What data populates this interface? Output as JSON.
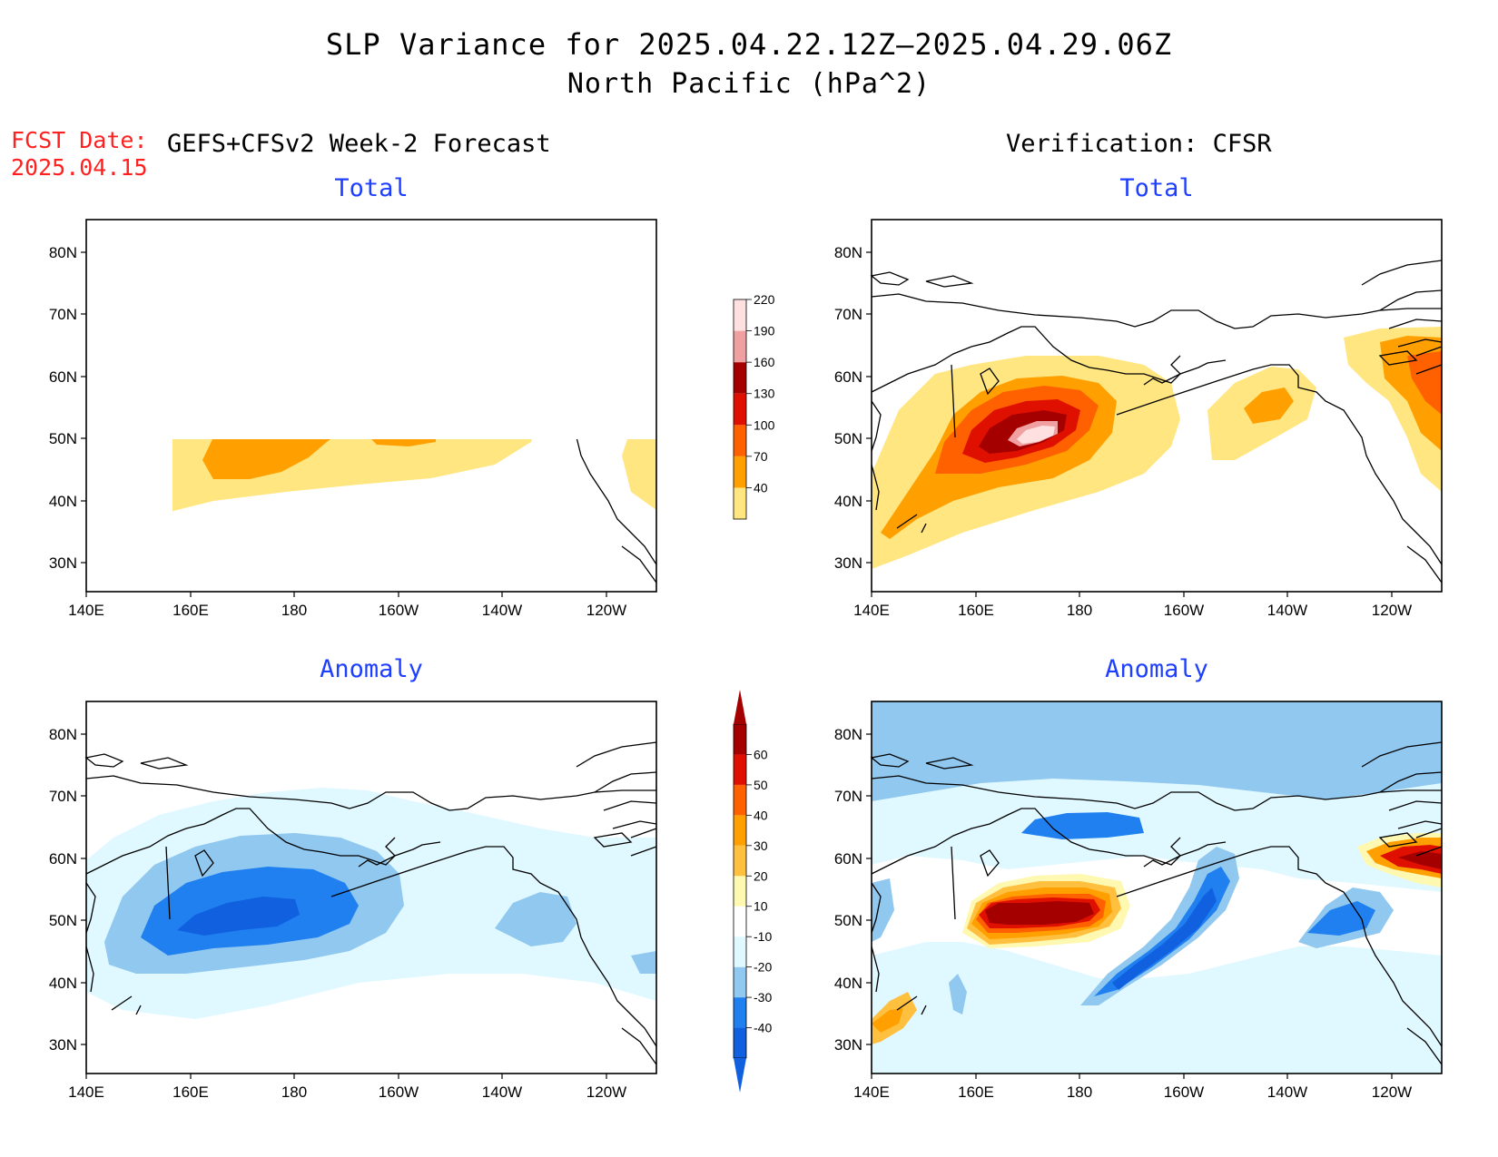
{
  "header": {
    "title": "SLP Variance for 2025.04.22.12Z–2025.04.29.06Z",
    "subtitle": "North Pacific (hPa^2)"
  },
  "forecast": {
    "date_label": "FCST Date:",
    "date_value": "2025.04.15",
    "left_heading": "GEFS+CFSv2 Week-2 Forecast",
    "right_heading": "Verification: CFSR"
  },
  "panels": {
    "forecast_total": {
      "title": "Total"
    },
    "verification_total": {
      "title": "Total"
    },
    "forecast_anomaly": {
      "title": "Anomaly"
    },
    "verification_anomaly": {
      "title": "Anomaly"
    }
  },
  "axes": {
    "lat_labels": [
      "80N",
      "70N",
      "60N",
      "50N",
      "40N",
      "30N"
    ],
    "lon_labels": [
      "140E",
      "160E",
      "180",
      "160W",
      "140W",
      "120W"
    ]
  },
  "colorbars": {
    "total": {
      "levels": [
        "40",
        "70",
        "100",
        "130",
        "160",
        "190",
        "220"
      ],
      "colors": [
        "#ffe680",
        "#ffa000",
        "#ff6000",
        "#e01000",
        "#a50000",
        "#f0a0a0",
        "#ffe0e0"
      ]
    },
    "anomaly": {
      "levels": [
        "-40",
        "-30",
        "-20",
        "-10",
        "10",
        "20",
        "30",
        "40",
        "50",
        "60"
      ],
      "colors": [
        "#1060e0",
        "#2080f0",
        "#90c8f0",
        "#e0f8ff",
        "#ffffff",
        "#fff8b0",
        "#ffc040",
        "#ffa000",
        "#ff6000",
        "#e01000",
        "#a50000"
      ]
    }
  }
}
